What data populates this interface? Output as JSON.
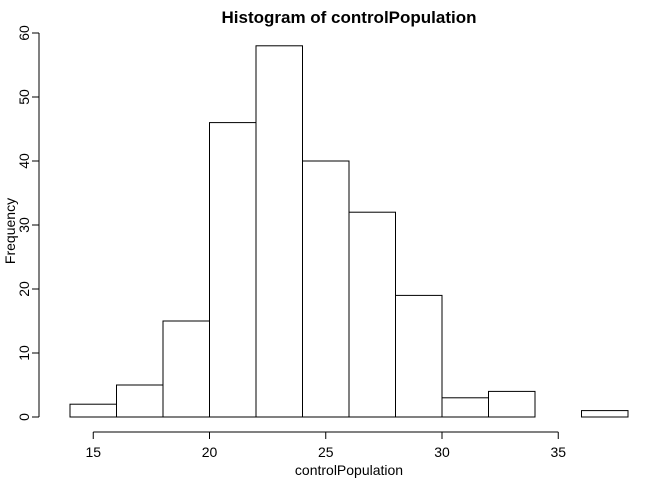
{
  "chart_data": {
    "type": "bar",
    "title": "Histogram of controlPopulation",
    "xlabel": "controlPopulation",
    "ylabel": "Frequency",
    "bins": [
      {
        "from": 14,
        "to": 16,
        "count": 2
      },
      {
        "from": 16,
        "to": 18,
        "count": 5
      },
      {
        "from": 18,
        "to": 20,
        "count": 15
      },
      {
        "from": 20,
        "to": 22,
        "count": 46
      },
      {
        "from": 22,
        "to": 24,
        "count": 58
      },
      {
        "from": 24,
        "to": 26,
        "count": 40
      },
      {
        "from": 26,
        "to": 28,
        "count": 32
      },
      {
        "from": 28,
        "to": 30,
        "count": 19
      },
      {
        "from": 30,
        "to": 32,
        "count": 3
      },
      {
        "from": 32,
        "to": 34,
        "count": 4
      },
      {
        "from": 34,
        "to": 36,
        "count": 0
      },
      {
        "from": 36,
        "to": 38,
        "count": 1
      }
    ],
    "xlim": [
      14,
      38
    ],
    "ylim": [
      0,
      60
    ],
    "xticks": [
      15,
      20,
      25,
      30,
      35
    ],
    "yticks": [
      0,
      10,
      20,
      30,
      40,
      50,
      60
    ],
    "grid": false,
    "legend": "none",
    "bar_fill": "#ffffff",
    "bar_stroke": "#000000"
  }
}
